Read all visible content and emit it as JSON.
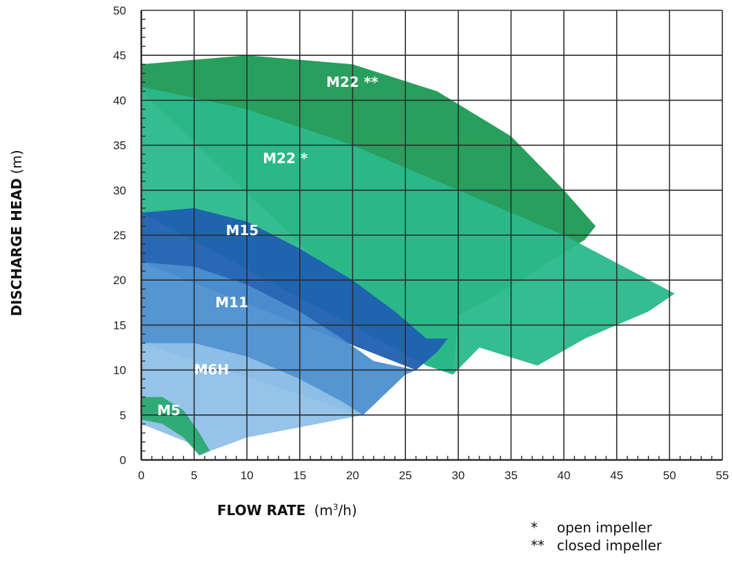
{
  "chart_data": {
    "type": "area",
    "xlabel": {
      "main": "FLOW RATE",
      "unit_pre": "(m",
      "unit_sup": "3",
      "unit_post": "/h)"
    },
    "ylabel": {
      "main": "DISCHARGE HEAD",
      "unit": "(m)"
    },
    "xlim": [
      0,
      55
    ],
    "ylim": [
      0,
      50
    ],
    "x_ticks": [
      "0",
      "5",
      "10",
      "15",
      "20",
      "25",
      "30",
      "35",
      "40",
      "45",
      "50",
      "55"
    ],
    "y_ticks": [
      "0",
      "5",
      "10",
      "15",
      "20",
      "25",
      "30",
      "35",
      "40",
      "45",
      "50"
    ],
    "grid": true,
    "series": [
      {
        "name": "M22 **",
        "color": "#1e9a54",
        "x": [
          0,
          10,
          20,
          28,
          35,
          40,
          43,
          42,
          36,
          30,
          29.5,
          27,
          0
        ],
        "y": [
          44,
          45,
          44,
          41,
          36,
          30,
          26,
          24.5,
          20,
          16,
          9.5,
          10.5,
          41
        ]
      },
      {
        "name": "M22 *",
        "color": "#2ab98b",
        "x": [
          0,
          10,
          20,
          30,
          40,
          50.5,
          48,
          42,
          37.5,
          32,
          29.5,
          27,
          0
        ],
        "y": [
          41.5,
          39,
          35,
          30,
          25,
          18.5,
          16.5,
          13.5,
          10.5,
          12.5,
          9.5,
          10.5,
          27.5
        ]
      },
      {
        "name": "M15",
        "color": "#1f5fb0",
        "x": [
          0,
          5,
          10,
          15,
          20,
          24,
          27,
          29,
          28,
          26,
          0
        ],
        "y": [
          27.5,
          28,
          26.5,
          23.5,
          20,
          16.5,
          13.5,
          13.5,
          12,
          10,
          22
        ]
      },
      {
        "name": "M11",
        "color": "#4b8fd0",
        "x": [
          0,
          5,
          10,
          15,
          19,
          22,
          26,
          25,
          21,
          0
        ],
        "y": [
          22,
          21.5,
          19.5,
          16.5,
          13.5,
          11,
          10,
          9.5,
          5,
          13
        ]
      },
      {
        "name": "M6H",
        "color": "#8fc0e8",
        "x": [
          0,
          5,
          10,
          15,
          19,
          21,
          10,
          6.5,
          0
        ],
        "y": [
          13,
          13,
          11.5,
          9,
          6.5,
          5,
          2.5,
          1,
          4
        ]
      },
      {
        "name": "M5",
        "color": "#2aa971",
        "x": [
          0,
          2,
          4,
          5.5,
          6.5,
          5.5,
          4,
          2,
          0
        ],
        "y": [
          7,
          7,
          5.5,
          3,
          1,
          0.5,
          2.5,
          4,
          4.5
        ]
      }
    ],
    "annotations": [
      {
        "text": "M22 **",
        "x": 17.5,
        "y": 41.5
      },
      {
        "text": "M22 *",
        "x": 11.5,
        "y": 33
      },
      {
        "text": "M15",
        "x": 8,
        "y": 25
      },
      {
        "text": "M11",
        "x": 7,
        "y": 17
      },
      {
        "text": "M6H",
        "x": 5,
        "y": 9.5
      },
      {
        "text": "M5",
        "x": 1.5,
        "y": 5
      }
    ],
    "legend": [
      {
        "symbol": "*",
        "text": "open impeller"
      },
      {
        "symbol": "**",
        "text": "closed impeller"
      }
    ]
  }
}
